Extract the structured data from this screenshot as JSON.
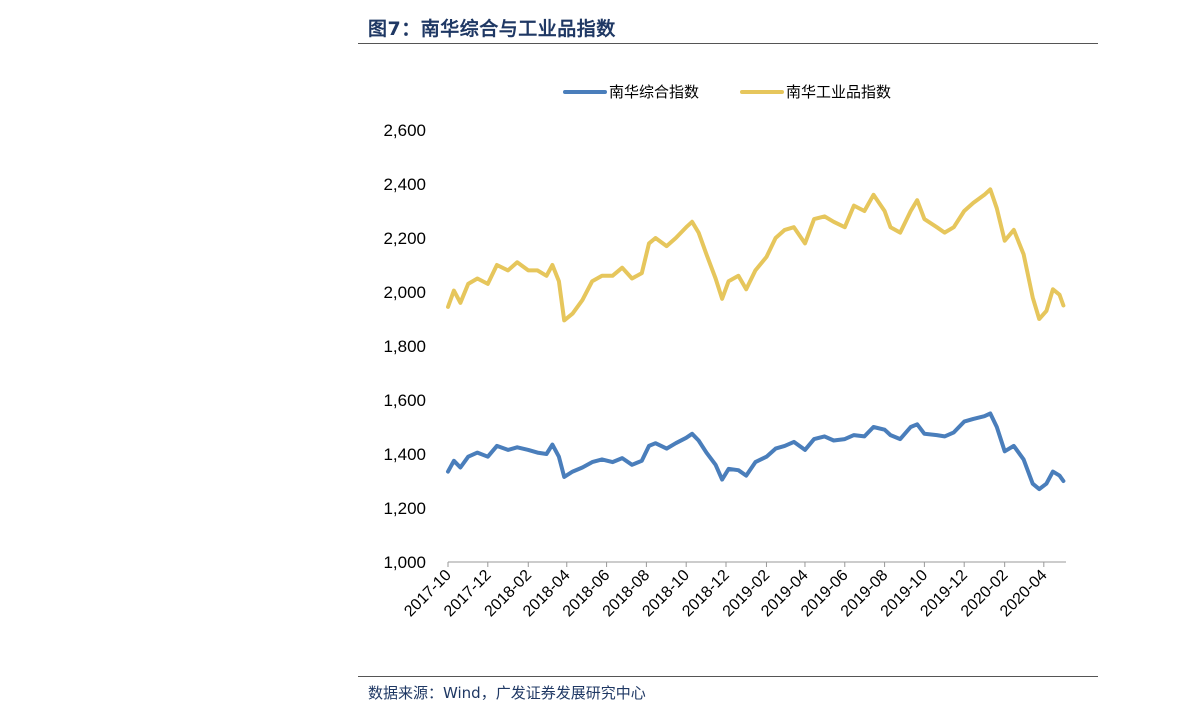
{
  "figure": {
    "title": "图7：南华综合与工业品指数",
    "source": "数据来源：Wind，广发证券发展研究中心"
  },
  "chart_data": {
    "type": "line",
    "title": "",
    "xlabel": "",
    "ylabel": "",
    "ylim": [
      1000,
      2600
    ],
    "yticks": [
      1000,
      1200,
      1400,
      1600,
      1800,
      2000,
      2200,
      2400,
      2600
    ],
    "ytick_labels": [
      "1,000",
      "1,200",
      "1,400",
      "1,600",
      "1,800",
      "2,000",
      "2,200",
      "2,400",
      "2,600"
    ],
    "xtick_labels": [
      "2017-10",
      "2017-12",
      "2018-02",
      "2018-04",
      "2018-06",
      "2018-08",
      "2018-10",
      "2018-12",
      "2019-02",
      "2019-04",
      "2019-06",
      "2019-08",
      "2019-10",
      "2019-12",
      "2020-02",
      "2020-04"
    ],
    "legend_position": "top",
    "grid": false,
    "series": [
      {
        "name": "南华综合指数",
        "color": "#4a7ebb",
        "points": [
          [
            "2017-10-01",
            1335
          ],
          [
            "2017-10-10",
            1375
          ],
          [
            "2017-10-20",
            1350
          ],
          [
            "2017-11-01",
            1390
          ],
          [
            "2017-11-15",
            1405
          ],
          [
            "2017-12-01",
            1390
          ],
          [
            "2017-12-15",
            1430
          ],
          [
            "2018-01-01",
            1415
          ],
          [
            "2018-01-15",
            1425
          ],
          [
            "2018-02-01",
            1415
          ],
          [
            "2018-02-15",
            1405
          ],
          [
            "2018-03-01",
            1400
          ],
          [
            "2018-03-10",
            1435
          ],
          [
            "2018-03-20",
            1390
          ],
          [
            "2018-03-28",
            1315
          ],
          [
            "2018-04-10",
            1335
          ],
          [
            "2018-04-25",
            1350
          ],
          [
            "2018-05-10",
            1370
          ],
          [
            "2018-05-25",
            1380
          ],
          [
            "2018-06-10",
            1370
          ],
          [
            "2018-06-25",
            1385
          ],
          [
            "2018-07-10",
            1360
          ],
          [
            "2018-07-25",
            1375
          ],
          [
            "2018-08-05",
            1430
          ],
          [
            "2018-08-15",
            1440
          ],
          [
            "2018-09-01",
            1420
          ],
          [
            "2018-09-15",
            1440
          ],
          [
            "2018-10-01",
            1460
          ],
          [
            "2018-10-10",
            1475
          ],
          [
            "2018-10-20",
            1450
          ],
          [
            "2018-11-01",
            1405
          ],
          [
            "2018-11-15",
            1360
          ],
          [
            "2018-11-25",
            1305
          ],
          [
            "2018-12-05",
            1345
          ],
          [
            "2018-12-20",
            1340
          ],
          [
            "2019-01-01",
            1320
          ],
          [
            "2019-01-15",
            1370
          ],
          [
            "2019-02-01",
            1390
          ],
          [
            "2019-02-15",
            1420
          ],
          [
            "2019-03-01",
            1430
          ],
          [
            "2019-03-15",
            1445
          ],
          [
            "2019-04-01",
            1415
          ],
          [
            "2019-04-15",
            1455
          ],
          [
            "2019-05-01",
            1465
          ],
          [
            "2019-05-15",
            1450
          ],
          [
            "2019-06-01",
            1455
          ],
          [
            "2019-06-15",
            1470
          ],
          [
            "2019-07-01",
            1465
          ],
          [
            "2019-07-15",
            1500
          ],
          [
            "2019-08-01",
            1490
          ],
          [
            "2019-08-10",
            1470
          ],
          [
            "2019-08-25",
            1455
          ],
          [
            "2019-09-10",
            1500
          ],
          [
            "2019-09-20",
            1510
          ],
          [
            "2019-10-01",
            1475
          ],
          [
            "2019-10-20",
            1470
          ],
          [
            "2019-11-01",
            1465
          ],
          [
            "2019-11-15",
            1480
          ],
          [
            "2019-12-01",
            1520
          ],
          [
            "2019-12-15",
            1530
          ],
          [
            "2020-01-01",
            1540
          ],
          [
            "2020-01-10",
            1550
          ],
          [
            "2020-01-20",
            1500
          ],
          [
            "2020-02-01",
            1410
          ],
          [
            "2020-02-15",
            1430
          ],
          [
            "2020-03-01",
            1380
          ],
          [
            "2020-03-15",
            1290
          ],
          [
            "2020-03-25",
            1270
          ],
          [
            "2020-04-05",
            1290
          ],
          [
            "2020-04-15",
            1335
          ],
          [
            "2020-04-25",
            1320
          ],
          [
            "2020-05-01",
            1300
          ]
        ]
      },
      {
        "name": "南华工业品指数",
        "color": "#e6c65c",
        "points": [
          [
            "2017-10-01",
            1945
          ],
          [
            "2017-10-10",
            2005
          ],
          [
            "2017-10-20",
            1960
          ],
          [
            "2017-11-01",
            2030
          ],
          [
            "2017-11-15",
            2050
          ],
          [
            "2017-12-01",
            2030
          ],
          [
            "2017-12-15",
            2100
          ],
          [
            "2018-01-01",
            2080
          ],
          [
            "2018-01-15",
            2110
          ],
          [
            "2018-02-01",
            2080
          ],
          [
            "2018-02-15",
            2080
          ],
          [
            "2018-03-01",
            2060
          ],
          [
            "2018-03-10",
            2100
          ],
          [
            "2018-03-20",
            2040
          ],
          [
            "2018-03-28",
            1895
          ],
          [
            "2018-04-10",
            1920
          ],
          [
            "2018-04-25",
            1970
          ],
          [
            "2018-05-10",
            2040
          ],
          [
            "2018-05-25",
            2060
          ],
          [
            "2018-06-10",
            2060
          ],
          [
            "2018-06-25",
            2090
          ],
          [
            "2018-07-10",
            2050
          ],
          [
            "2018-07-25",
            2070
          ],
          [
            "2018-08-05",
            2180
          ],
          [
            "2018-08-15",
            2200
          ],
          [
            "2018-09-01",
            2170
          ],
          [
            "2018-09-15",
            2200
          ],
          [
            "2018-10-01",
            2240
          ],
          [
            "2018-10-10",
            2260
          ],
          [
            "2018-10-20",
            2220
          ],
          [
            "2018-11-01",
            2140
          ],
          [
            "2018-11-15",
            2050
          ],
          [
            "2018-11-25",
            1975
          ],
          [
            "2018-12-05",
            2040
          ],
          [
            "2018-12-20",
            2060
          ],
          [
            "2019-01-01",
            2010
          ],
          [
            "2019-01-15",
            2080
          ],
          [
            "2019-02-01",
            2130
          ],
          [
            "2019-02-15",
            2200
          ],
          [
            "2019-03-01",
            2230
          ],
          [
            "2019-03-15",
            2240
          ],
          [
            "2019-04-01",
            2180
          ],
          [
            "2019-04-15",
            2270
          ],
          [
            "2019-05-01",
            2280
          ],
          [
            "2019-05-15",
            2260
          ],
          [
            "2019-06-01",
            2240
          ],
          [
            "2019-06-15",
            2320
          ],
          [
            "2019-07-01",
            2300
          ],
          [
            "2019-07-15",
            2360
          ],
          [
            "2019-08-01",
            2300
          ],
          [
            "2019-08-10",
            2240
          ],
          [
            "2019-08-25",
            2220
          ],
          [
            "2019-09-10",
            2300
          ],
          [
            "2019-09-20",
            2340
          ],
          [
            "2019-10-01",
            2270
          ],
          [
            "2019-10-20",
            2240
          ],
          [
            "2019-11-01",
            2220
          ],
          [
            "2019-11-15",
            2240
          ],
          [
            "2019-12-01",
            2300
          ],
          [
            "2019-12-15",
            2330
          ],
          [
            "2020-01-01",
            2360
          ],
          [
            "2020-01-10",
            2380
          ],
          [
            "2020-01-20",
            2310
          ],
          [
            "2020-02-01",
            2190
          ],
          [
            "2020-02-15",
            2230
          ],
          [
            "2020-03-01",
            2140
          ],
          [
            "2020-03-15",
            1980
          ],
          [
            "2020-03-25",
            1900
          ],
          [
            "2020-04-05",
            1930
          ],
          [
            "2020-04-15",
            2010
          ],
          [
            "2020-04-25",
            1990
          ],
          [
            "2020-05-01",
            1950
          ]
        ]
      }
    ]
  }
}
